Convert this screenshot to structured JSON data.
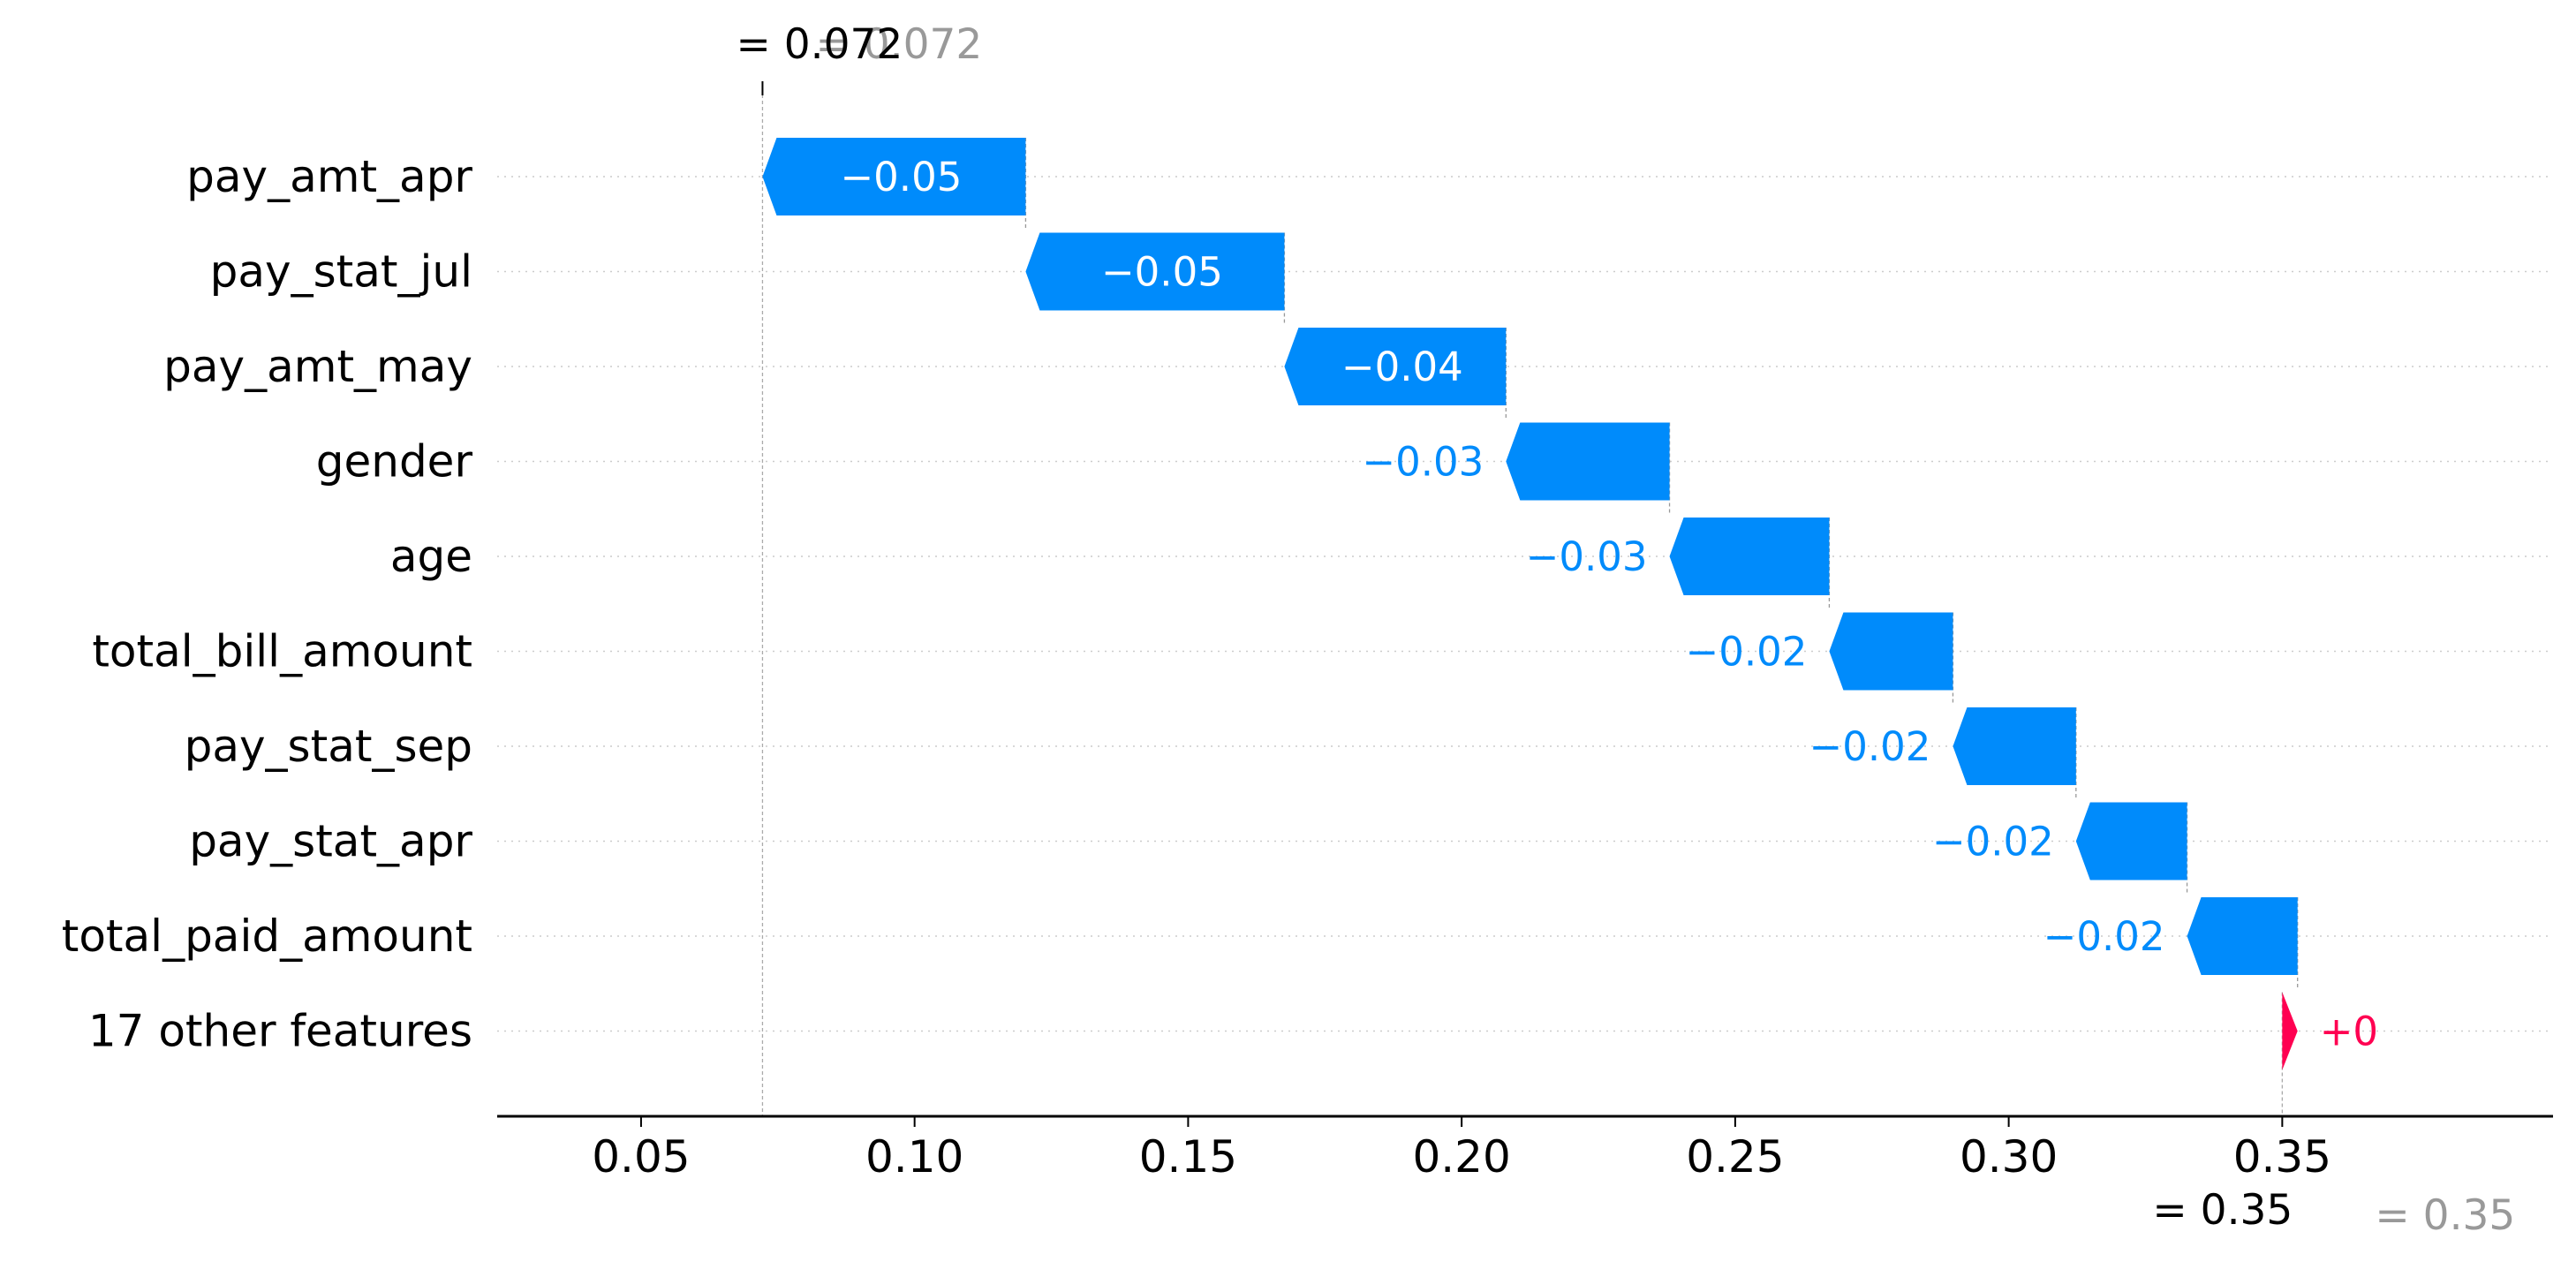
{
  "chart_data": {
    "type": "waterfall",
    "features": [
      {
        "name": "pay_amt_apr",
        "value": -0.05,
        "label": "−0.05"
      },
      {
        "name": "pay_stat_jul",
        "value": -0.05,
        "label": "−0.05"
      },
      {
        "name": "pay_amt_may",
        "value": -0.04,
        "label": "−0.04"
      },
      {
        "name": "gender",
        "value": -0.03,
        "label": "−0.03"
      },
      {
        "name": "age",
        "value": -0.03,
        "label": "−0.03"
      },
      {
        "name": "total_bill_amount",
        "value": -0.02,
        "label": "−0.02"
      },
      {
        "name": "pay_stat_sep",
        "value": -0.02,
        "label": "−0.02"
      },
      {
        "name": "pay_stat_apr",
        "value": -0.02,
        "label": "−0.02"
      },
      {
        "name": "total_paid_amount",
        "value": -0.02,
        "label": "−0.02"
      },
      {
        "name": "17 other features",
        "value": 0.002,
        "label": "+0"
      }
    ],
    "segments": [
      {
        "start": 0.1203,
        "end": 0.0722
      },
      {
        "start": 0.1676,
        "end": 0.1203
      },
      {
        "start": 0.2081,
        "end": 0.1676
      },
      {
        "start": 0.238,
        "end": 0.2081
      },
      {
        "start": 0.2672,
        "end": 0.238
      },
      {
        "start": 0.2898,
        "end": 0.2672
      },
      {
        "start": 0.3123,
        "end": 0.2898
      },
      {
        "start": 0.3326,
        "end": 0.3123
      },
      {
        "start": 0.3528,
        "end": 0.3326
      },
      {
        "start": 0.35,
        "end": 0.3528
      }
    ],
    "fx": {
      "value": 0.0722,
      "label": "= 0.072",
      "ghost_label": "= 0.072"
    },
    "base": {
      "value": 0.35,
      "label": "= 0.35",
      "ghost_label": "= 0.35"
    },
    "xticks": [
      0.05,
      0.1,
      0.15,
      0.2,
      0.25,
      0.3,
      0.35
    ],
    "xtick_labels": [
      "0.05",
      "0.10",
      "0.15",
      "0.20",
      "0.25",
      "0.30",
      "0.35"
    ],
    "xlim": [
      0.0237,
      0.3995
    ],
    "colors": {
      "negative": "#008bfb",
      "positive": "#ff0051",
      "ghost": "#999999",
      "grid": "#cccccc"
    }
  }
}
